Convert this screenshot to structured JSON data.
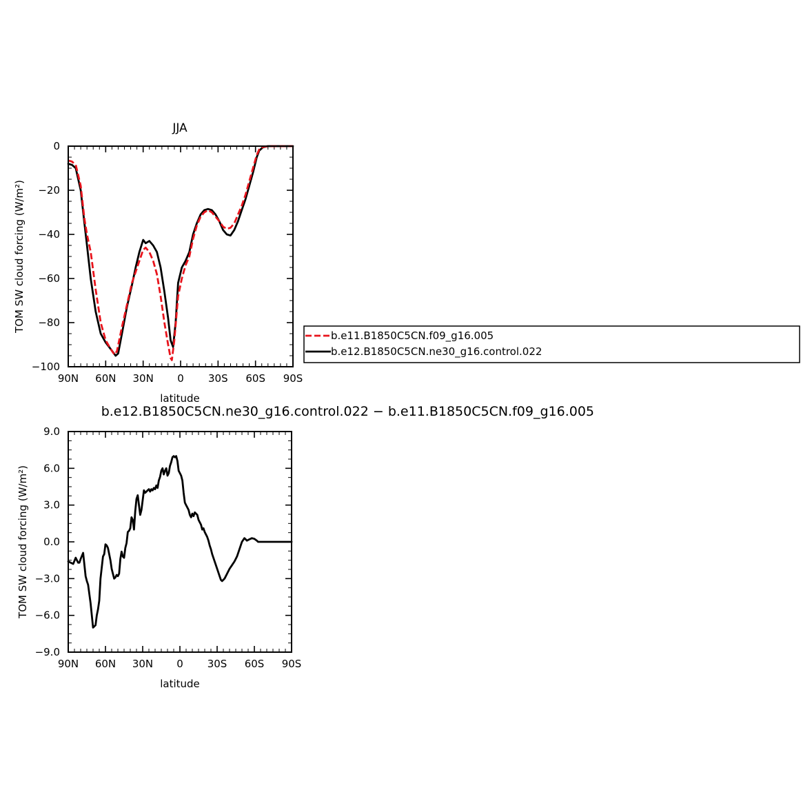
{
  "chart_data": [
    {
      "type": "line",
      "title": "JJA",
      "xlabel": "latitude",
      "ylabel": "TOM SW cloud forcing (W/m²)",
      "xlim": [
        90,
        -90
      ],
      "ylim": [
        -100,
        0
      ],
      "xticks": [
        {
          "value": 90,
          "label": "90N"
        },
        {
          "value": 60,
          "label": "60N"
        },
        {
          "value": 30,
          "label": "30N"
        },
        {
          "value": 0,
          "label": "0"
        },
        {
          "value": -30,
          "label": "30S"
        },
        {
          "value": -60,
          "label": "60S"
        },
        {
          "value": -90,
          "label": "90S"
        }
      ],
      "yticks": [
        {
          "value": 0,
          "label": "0"
        },
        {
          "value": -20,
          "label": "−20"
        },
        {
          "value": -40,
          "label": "−40"
        },
        {
          "value": -60,
          "label": "−60"
        },
        {
          "value": -80,
          "label": "−80"
        },
        {
          "value": -100,
          "label": "−100"
        }
      ],
      "legend": {
        "placement": "right"
      },
      "series": [
        {
          "name": "b.e11.B1850C5CN.f09_g16.005",
          "color": "#e8141c",
          "style": "dashed",
          "x": [
            90,
            87,
            84,
            80,
            77,
            75,
            72,
            68,
            64,
            60,
            56,
            53,
            51,
            47,
            43,
            39,
            36,
            33,
            30,
            28,
            25,
            22,
            19,
            16,
            13,
            10,
            8,
            7,
            5,
            2,
            -1,
            -4,
            -7,
            -10,
            -13,
            -16,
            -19,
            -22,
            -25,
            -28,
            -31,
            -34,
            -37,
            -40,
            -43,
            -46,
            -49,
            -52,
            -55,
            -58,
            -61,
            -63,
            -66,
            -70,
            -75,
            -80,
            -85,
            -90
          ],
          "y": [
            -6.5,
            -7,
            -8.5,
            -18,
            -33,
            -40,
            -48,
            -65,
            -80,
            -88,
            -92,
            -94.5,
            -93,
            -82,
            -72,
            -62,
            -57,
            -52,
            -47,
            -46,
            -48,
            -52,
            -58,
            -68,
            -80,
            -90,
            -96,
            -97,
            -88,
            -68,
            -60,
            -54,
            -50,
            -42,
            -36,
            -32,
            -30,
            -29,
            -30,
            -32,
            -34,
            -36.5,
            -37.5,
            -37,
            -35,
            -31,
            -27,
            -22,
            -16,
            -10,
            -4,
            -1.5,
            -0.3,
            0,
            0,
            0,
            0,
            0
          ]
        },
        {
          "name": "b.e12.B1850C5CN.ne30_g16.control.022",
          "color": "#000000",
          "style": "solid",
          "x": [
            90,
            87,
            84,
            80,
            77,
            75,
            72,
            68,
            64,
            60,
            56,
            52,
            50,
            47,
            43,
            39,
            36,
            33,
            30,
            28,
            25,
            22,
            19,
            16,
            13,
            10,
            8,
            6,
            4,
            2,
            -1,
            -4,
            -7,
            -10,
            -13,
            -16,
            -19,
            -22,
            -25,
            -28,
            -31,
            -34,
            -37,
            -40,
            -43,
            -46,
            -49,
            -52,
            -55,
            -58,
            -61,
            -63,
            -66,
            -70,
            -75,
            -80,
            -85,
            -90
          ],
          "y": [
            -8,
            -8.5,
            -10,
            -20,
            -35,
            -45,
            -60,
            -75,
            -85,
            -89,
            -92,
            -95,
            -94,
            -85,
            -73,
            -63,
            -55,
            -48,
            -42.5,
            -44,
            -43,
            -45,
            -48,
            -55,
            -66,
            -78,
            -88,
            -91,
            -80,
            -62,
            -55,
            -52,
            -48,
            -40,
            -35,
            -31,
            -29,
            -28.5,
            -29,
            -31,
            -34,
            -38,
            -40,
            -40.5,
            -38,
            -34,
            -29,
            -24,
            -18,
            -12,
            -5,
            -2,
            -0.5,
            0,
            0,
            0,
            0,
            0
          ]
        }
      ]
    },
    {
      "type": "line",
      "title": "b.e12.B1850C5CN.ne30_g16.control.022 − b.e11.B1850C5CN.f09_g16.005",
      "xlabel": "latitude",
      "ylabel": "TOM SW cloud forcing (W/m²)",
      "xlim": [
        90,
        -90
      ],
      "ylim": [
        -9,
        9
      ],
      "xticks": [
        {
          "value": 90,
          "label": "90N"
        },
        {
          "value": 60,
          "label": "60N"
        },
        {
          "value": 30,
          "label": "30N"
        },
        {
          "value": 0,
          "label": "0"
        },
        {
          "value": -30,
          "label": "30S"
        },
        {
          "value": -60,
          "label": "60S"
        },
        {
          "value": -90,
          "label": "90S"
        }
      ],
      "yticks": [
        {
          "value": 9,
          "label": "9.0"
        },
        {
          "value": 6,
          "label": "6.0"
        },
        {
          "value": 3,
          "label": "3.0"
        },
        {
          "value": 0,
          "label": "0.0"
        },
        {
          "value": -3,
          "label": "−3.0"
        },
        {
          "value": -6,
          "label": "−6.0"
        },
        {
          "value": -9,
          "label": "−9.0"
        }
      ],
      "series": [
        {
          "color": "#000000",
          "style": "solid",
          "x": [
            90,
            88,
            86,
            84,
            82,
            81,
            80,
            78,
            76,
            75,
            74,
            72,
            70,
            68,
            67,
            66,
            65,
            64,
            62,
            61,
            60,
            59,
            58,
            57,
            56,
            55,
            54,
            53,
            52,
            51,
            50,
            49,
            48,
            47,
            46,
            45,
            44,
            43,
            42,
            41,
            40,
            39,
            38,
            37,
            36,
            35,
            34,
            33,
            32,
            31,
            30,
            29,
            28,
            27,
            26,
            25,
            24,
            23,
            22,
            21,
            20,
            19,
            18,
            17,
            16,
            15,
            14,
            13,
            12,
            11,
            10,
            9,
            8,
            7,
            6,
            5,
            4,
            3,
            2,
            1,
            0,
            -1,
            -2,
            -3,
            -4,
            -5,
            -6,
            -7,
            -8,
            -9,
            -10,
            -11,
            -12,
            -13,
            -14,
            -15,
            -16,
            -17,
            -18,
            -19,
            -20,
            -21,
            -22,
            -23,
            -24,
            -25,
            -26,
            -28,
            -30,
            -32,
            -33,
            -34,
            -35,
            -36,
            -37,
            -38,
            -40,
            -42,
            -44,
            -46,
            -48,
            -50,
            -52,
            -53,
            -54,
            -56,
            -58,
            -60,
            -62,
            -63,
            -65,
            -68,
            -72,
            -78,
            -85,
            -90
          ],
          "y": [
            -1.6,
            -1.7,
            -1.8,
            -1.3,
            -1.7,
            -1.7,
            -1.4,
            -0.9,
            -2.8,
            -3.2,
            -3.5,
            -5.0,
            -7.0,
            -6.8,
            -6.0,
            -5.5,
            -4.8,
            -3.0,
            -1.2,
            -1.0,
            -0.2,
            -0.3,
            -0.5,
            -1.0,
            -1.5,
            -2.2,
            -2.6,
            -3.0,
            -2.9,
            -2.7,
            -2.8,
            -2.6,
            -1.4,
            -0.8,
            -1.2,
            -1.3,
            -0.5,
            -0.1,
            0.8,
            0.9,
            1.1,
            2.0,
            1.8,
            1.0,
            2.5,
            3.5,
            3.8,
            3.0,
            2.2,
            2.6,
            3.4,
            4.2,
            4.0,
            4.1,
            4.2,
            4.3,
            4.1,
            4.3,
            4.2,
            4.4,
            4.3,
            4.6,
            4.4,
            5.0,
            5.3,
            5.8,
            6.0,
            5.5,
            5.8,
            6.0,
            5.4,
            5.6,
            6.2,
            6.5,
            6.9,
            7.0,
            6.9,
            7.0,
            6.6,
            5.8,
            5.6,
            5.4,
            5.0,
            4.0,
            3.2,
            3.0,
            2.8,
            2.6,
            2.2,
            2.0,
            2.3,
            2.1,
            2.4,
            2.3,
            2.2,
            1.8,
            1.6,
            1.4,
            1.0,
            1.1,
            0.8,
            0.6,
            0.4,
            0.1,
            -0.3,
            -0.6,
            -1.0,
            -1.6,
            -2.2,
            -2.8,
            -3.1,
            -3.2,
            -3.1,
            -3.0,
            -2.8,
            -2.6,
            -2.2,
            -1.9,
            -1.6,
            -1.2,
            -0.6,
            0.0,
            0.3,
            0.2,
            0.1,
            0.2,
            0.3,
            0.25,
            0.1,
            0.0,
            0.0,
            0.0,
            0.0,
            0.0,
            0.0,
            0.0
          ]
        }
      ]
    }
  ]
}
